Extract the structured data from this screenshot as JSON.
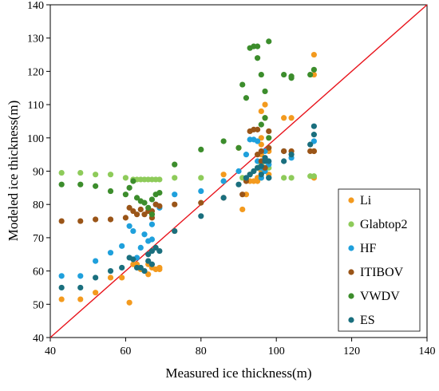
{
  "chart_data": {
    "type": "scatter",
    "title": "",
    "xlabel": "Measured ice thickness(m)",
    "ylabel": "Modeled ice thickness(m)",
    "xlim": [
      40,
      140
    ],
    "ylim": [
      40,
      140
    ],
    "xticks": [
      40,
      60,
      80,
      100,
      120,
      140
    ],
    "yticks": [
      40,
      50,
      60,
      70,
      80,
      90,
      100,
      110,
      120,
      130,
      140
    ],
    "grid": false,
    "legend_position": "bottom-right",
    "reference_line": {
      "x": [
        40,
        140
      ],
      "y": [
        40,
        140
      ],
      "color": "#e8141c"
    },
    "series": [
      {
        "name": "Li",
        "color": "#f39a1e",
        "points": [
          [
            43,
            51.5
          ],
          [
            48,
            51.5
          ],
          [
            52,
            53.5
          ],
          [
            56,
            58
          ],
          [
            59,
            58
          ],
          [
            61,
            50.5
          ],
          [
            62,
            62
          ],
          [
            63,
            62
          ],
          [
            64,
            60.5
          ],
          [
            66,
            62
          ],
          [
            66,
            59
          ],
          [
            67,
            61
          ],
          [
            68,
            60.5
          ],
          [
            69,
            60.5
          ],
          [
            69,
            61
          ],
          [
            73,
            72
          ],
          [
            86,
            89
          ],
          [
            90,
            97
          ],
          [
            91,
            78.5
          ],
          [
            92,
            83
          ],
          [
            93,
            87
          ],
          [
            94,
            87
          ],
          [
            95,
            87
          ],
          [
            95,
            88
          ],
          [
            96,
            88
          ],
          [
            96,
            90
          ],
          [
            96,
            92
          ],
          [
            96,
            95
          ],
          [
            96,
            98
          ],
          [
            96,
            100
          ],
          [
            96,
            108
          ],
          [
            97,
            110
          ],
          [
            97,
            106
          ],
          [
            98,
            96
          ],
          [
            98,
            89
          ],
          [
            102,
            106
          ],
          [
            104,
            106
          ],
          [
            110,
            125
          ],
          [
            110,
            119
          ],
          [
            110,
            96
          ],
          [
            110,
            88
          ]
        ]
      },
      {
        "name": "Glabtop2",
        "color": "#8ecb5a",
        "points": [
          [
            43,
            89.5
          ],
          [
            48,
            89.5
          ],
          [
            52,
            89
          ],
          [
            56,
            89
          ],
          [
            60,
            88
          ],
          [
            62,
            87.5
          ],
          [
            63,
            87.5
          ],
          [
            64,
            87.5
          ],
          [
            65,
            87.5
          ],
          [
            66,
            87.5
          ],
          [
            67,
            87.5
          ],
          [
            68,
            87.5
          ],
          [
            69,
            87.5
          ],
          [
            73,
            88
          ],
          [
            80,
            88
          ],
          [
            86,
            87
          ],
          [
            91,
            88
          ],
          [
            93,
            89
          ],
          [
            94,
            90
          ],
          [
            95,
            91
          ],
          [
            96,
            92
          ],
          [
            97,
            91
          ],
          [
            98,
            91
          ],
          [
            102,
            88
          ],
          [
            104,
            88
          ],
          [
            109,
            88.5
          ],
          [
            110,
            88.5
          ]
        ]
      },
      {
        "name": "HF",
        "color": "#1fa0dc",
        "points": [
          [
            43,
            58.5
          ],
          [
            48,
            58.5
          ],
          [
            52,
            63
          ],
          [
            56,
            65.5
          ],
          [
            59,
            67.5
          ],
          [
            61,
            73.5
          ],
          [
            62,
            72
          ],
          [
            63,
            64
          ],
          [
            64,
            67
          ],
          [
            65,
            71
          ],
          [
            66,
            69
          ],
          [
            67,
            69.5
          ],
          [
            67,
            74
          ],
          [
            68,
            80
          ],
          [
            69,
            79
          ],
          [
            73,
            83
          ],
          [
            80,
            84
          ],
          [
            86,
            87
          ],
          [
            90,
            90
          ],
          [
            92,
            95
          ],
          [
            93,
            99.5
          ],
          [
            94,
            99.5
          ],
          [
            95,
            99
          ],
          [
            95,
            93
          ],
          [
            96,
            91
          ],
          [
            96,
            88
          ],
          [
            97,
            96
          ],
          [
            97,
            90
          ],
          [
            98,
            92
          ],
          [
            98,
            88
          ],
          [
            102,
            96
          ],
          [
            104,
            94
          ],
          [
            110,
            99
          ]
        ]
      },
      {
        "name": "ITIBOV",
        "color": "#9a5518",
        "points": [
          [
            43,
            75
          ],
          [
            48,
            75
          ],
          [
            52,
            75.5
          ],
          [
            56,
            75.5
          ],
          [
            60,
            76
          ],
          [
            61,
            79
          ],
          [
            62,
            78
          ],
          [
            63,
            77
          ],
          [
            64,
            78.5
          ],
          [
            65,
            77
          ],
          [
            66,
            78
          ],
          [
            67,
            78
          ],
          [
            67,
            76
          ],
          [
            68,
            80
          ],
          [
            69,
            79.5
          ],
          [
            73,
            80
          ],
          [
            80,
            80.5
          ],
          [
            86,
            82
          ],
          [
            91,
            83
          ],
          [
            92,
            87
          ],
          [
            93,
            102
          ],
          [
            94,
            102.5
          ],
          [
            95,
            102.5
          ],
          [
            95,
            95
          ],
          [
            96,
            96
          ],
          [
            96,
            93
          ],
          [
            97,
            94
          ],
          [
            97,
            91
          ],
          [
            98,
            97
          ],
          [
            98,
            102
          ],
          [
            102,
            96
          ],
          [
            104,
            96
          ],
          [
            109,
            96
          ],
          [
            110,
            96
          ]
        ]
      },
      {
        "name": "VWDV",
        "color": "#3c8d2c",
        "points": [
          [
            43,
            86
          ],
          [
            48,
            86
          ],
          [
            52,
            85.5
          ],
          [
            56,
            84
          ],
          [
            60,
            83
          ],
          [
            61,
            85
          ],
          [
            62,
            87
          ],
          [
            63,
            82
          ],
          [
            64,
            81
          ],
          [
            65,
            80.5
          ],
          [
            66,
            79
          ],
          [
            67,
            77
          ],
          [
            67,
            81.5
          ],
          [
            68,
            83
          ],
          [
            69,
            83.5
          ],
          [
            73,
            92
          ],
          [
            80,
            96.5
          ],
          [
            86,
            99
          ],
          [
            90,
            97
          ],
          [
            91,
            116
          ],
          [
            92,
            112
          ],
          [
            93,
            127
          ],
          [
            94,
            127.5
          ],
          [
            95,
            127.5
          ],
          [
            95,
            124
          ],
          [
            96,
            119
          ],
          [
            96,
            104
          ],
          [
            97,
            114
          ],
          [
            97,
            106
          ],
          [
            98,
            129
          ],
          [
            98,
            100
          ],
          [
            102,
            119
          ],
          [
            104,
            118
          ],
          [
            104,
            118.5
          ],
          [
            109,
            119
          ],
          [
            110,
            120.5
          ]
        ]
      },
      {
        "name": "ES",
        "color": "#1a6f7e",
        "points": [
          [
            43,
            55
          ],
          [
            48,
            55
          ],
          [
            52,
            58
          ],
          [
            56,
            60
          ],
          [
            59,
            61
          ],
          [
            61,
            64
          ],
          [
            62,
            63.5
          ],
          [
            63,
            61
          ],
          [
            64,
            61
          ],
          [
            65,
            60
          ],
          [
            66,
            63
          ],
          [
            66,
            65
          ],
          [
            67,
            62
          ],
          [
            67,
            66
          ],
          [
            68,
            67
          ],
          [
            69,
            66
          ],
          [
            73,
            72
          ],
          [
            80,
            76.5
          ],
          [
            86,
            82
          ],
          [
            90,
            86
          ],
          [
            92,
            88
          ],
          [
            93,
            89
          ],
          [
            94,
            90
          ],
          [
            95,
            91
          ],
          [
            96,
            91.5
          ],
          [
            96,
            89
          ],
          [
            97,
            93
          ],
          [
            97,
            94
          ],
          [
            98,
            93
          ],
          [
            98,
            88
          ],
          [
            102,
            93
          ],
          [
            104,
            95
          ],
          [
            109,
            98
          ],
          [
            110,
            101
          ],
          [
            110,
            103.5
          ]
        ]
      }
    ]
  }
}
